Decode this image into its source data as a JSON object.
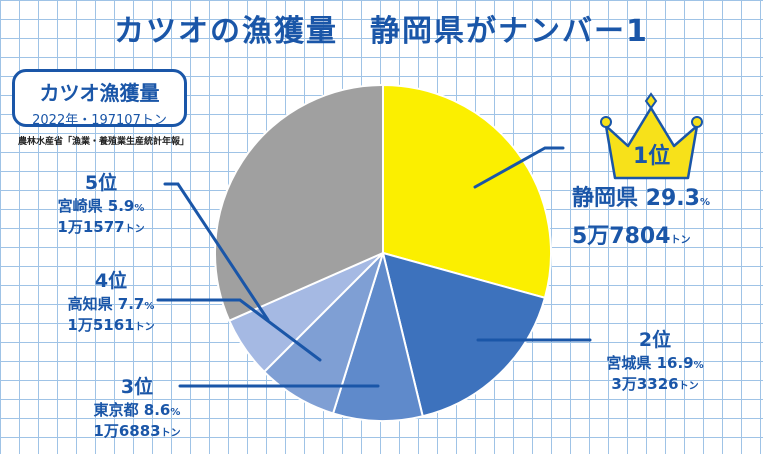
{
  "title": "カツオの漁獲量　静岡県がナンバー1",
  "subtitle_box": {
    "title": "カツオ漁獲量",
    "detail": "2022年・197107トン"
  },
  "source": "農林水産省「漁業・養殖業生産統計年報」",
  "colors": {
    "accent": "#1a56a8",
    "grid": "#9fc3e6",
    "crown": "#f7e11a"
  },
  "labels": {
    "first": {
      "rank": "1位",
      "pref": "静岡県 29.3",
      "pct": "%",
      "amount": "5万7804",
      "unit": "トン"
    },
    "second": {
      "rank": "2位",
      "pref": "宮城県 16.9",
      "pct": "%",
      "amount": "3万3326",
      "unit": "トン"
    },
    "third": {
      "rank": "3位",
      "pref": "東京都 8.6",
      "pct": "%",
      "amount": "1万6883",
      "unit": "トン"
    },
    "fourth": {
      "rank": "4位",
      "pref": "高知県 7.7",
      "pct": "%",
      "amount": "1万5161",
      "unit": "トン"
    },
    "fifth": {
      "rank": "5位",
      "pref": "宮崎県 5.9",
      "pct": "%",
      "amount": "1万1577",
      "unit": "トン"
    }
  },
  "chart_data": {
    "type": "pie",
    "title": "カツオの漁獲量　静岡県がナンバー1",
    "unit": "トン",
    "total": 197107,
    "slices": [
      {
        "label": "静岡県",
        "rank": 1,
        "percent": 29.3,
        "value": 57804,
        "color": "#fbef00"
      },
      {
        "label": "宮城県",
        "rank": 2,
        "percent": 16.9,
        "value": 33326,
        "color": "#3d72bd"
      },
      {
        "label": "東京都",
        "rank": 3,
        "percent": 8.6,
        "value": 16883,
        "color": "#5f8acb"
      },
      {
        "label": "高知県",
        "rank": 4,
        "percent": 7.7,
        "value": 15161,
        "color": "#7f9fd4"
      },
      {
        "label": "宮崎県",
        "rank": 5,
        "percent": 5.9,
        "value": 11577,
        "color": "#a5b9e3"
      },
      {
        "label": "",
        "rank": null,
        "percent": 31.6,
        "value": 62356,
        "color": "#a0a0a0"
      }
    ]
  }
}
